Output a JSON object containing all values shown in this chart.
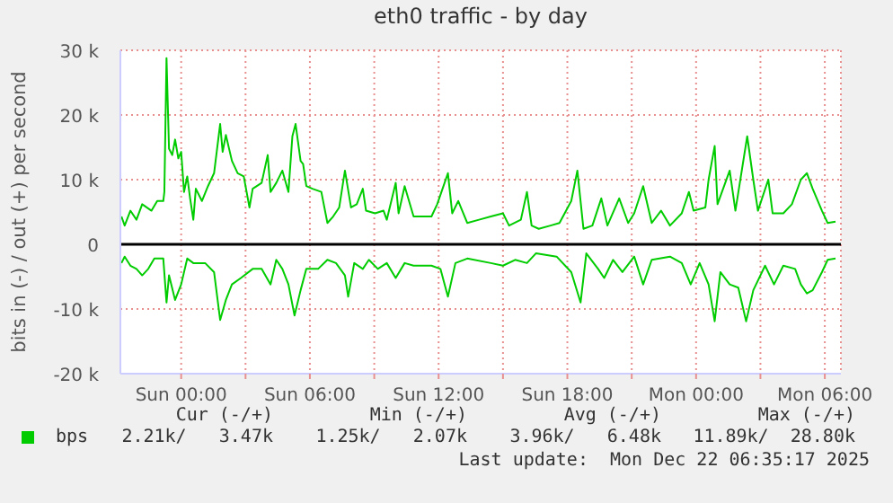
{
  "chart_data": {
    "type": "line",
    "title": "eth0 traffic - by day",
    "ylabel": "bits in (-) / out (+) per second",
    "xlim": [
      "2025-12-20T21:10",
      "2025-12-22T06:45"
    ],
    "xticks": [
      {
        "value": "2025-12-21T00:00",
        "label": "Sun 00:00"
      },
      {
        "value": "2025-12-21T03:00",
        "label": null
      },
      {
        "value": "2025-12-21T06:00",
        "label": "Sun 06:00"
      },
      {
        "value": "2025-12-21T09:00",
        "label": null
      },
      {
        "value": "2025-12-21T12:00",
        "label": "Sun 12:00"
      },
      {
        "value": "2025-12-21T15:00",
        "label": null
      },
      {
        "value": "2025-12-21T18:00",
        "label": "Sun 18:00"
      },
      {
        "value": "2025-12-21T21:00",
        "label": null
      },
      {
        "value": "2025-12-22T00:00",
        "label": "Mon 00:00"
      },
      {
        "value": "2025-12-22T03:00",
        "label": null
      },
      {
        "value": "2025-12-22T06:00",
        "label": "Mon 06:00"
      }
    ],
    "ylim": [
      -20000,
      30000
    ],
    "yticks": [
      {
        "value": -20000,
        "label": "-20 k"
      },
      {
        "value": -10000,
        "label": "-10 k"
      },
      0,
      {
        "value": 10000,
        "label": "10 k"
      },
      {
        "value": 20000,
        "label": "20 k"
      },
      {
        "value": 30000,
        "label": "30 k"
      }
    ],
    "grid": true,
    "legend": "bottom left",
    "line_style": "solid",
    "marker": "none",
    "ref_lines": [
      {
        "axis": "y",
        "value": 0,
        "color": "#000000"
      }
    ],
    "series": [
      {
        "name": "bps",
        "color": "#00cc00",
        "x": [
          "2025-12-20T21:13",
          "2025-12-20T21:22",
          "2025-12-20T21:38",
          "2025-12-20T21:55",
          "2025-12-20T22:11",
          "2025-12-20T22:37",
          "2025-12-20T22:53",
          "2025-12-20T23:10",
          "2025-12-20T23:13",
          "2025-12-20T23:19",
          "2025-12-20T23:26",
          "2025-12-20T23:35",
          "2025-12-20T23:43",
          "2025-12-20T23:52",
          "2025-12-21T00:00",
          "2025-12-21T00:08",
          "2025-12-21T00:17",
          "2025-12-21T00:25",
          "2025-12-21T00:34",
          "2025-12-21T00:41",
          "2025-12-21T00:58",
          "2025-12-21T01:15",
          "2025-12-21T01:32",
          "2025-12-21T01:49",
          "2025-12-21T01:56",
          "2025-12-21T02:05",
          "2025-12-21T02:22",
          "2025-12-21T02:38",
          "2025-12-21T02:55",
          "2025-12-21T03:11",
          "2025-12-21T03:20",
          "2025-12-21T03:45",
          "2025-12-21T04:02",
          "2025-12-21T04:10",
          "2025-12-21T04:26",
          "2025-12-21T04:43",
          "2025-12-21T05:00",
          "2025-12-21T05:11",
          "2025-12-21T05:20",
          "2025-12-21T05:34",
          "2025-12-21T05:41",
          "2025-12-21T05:50",
          "2025-12-21T06:07",
          "2025-12-21T06:32",
          "2025-12-21T06:49",
          "2025-12-21T07:05",
          "2025-12-21T07:22",
          "2025-12-21T07:38",
          "2025-12-21T07:55",
          "2025-12-21T08:11",
          "2025-12-21T08:28",
          "2025-12-21T08:37",
          "2025-12-21T09:02",
          "2025-12-21T09:26",
          "2025-12-21T09:35",
          "2025-12-21T10:00",
          "2025-12-21T10:08",
          "2025-12-21T10:25",
          "2025-12-21T10:50",
          "2025-12-21T11:40",
          "2025-12-21T11:56",
          "2025-12-21T12:26",
          "2025-12-21T12:38",
          "2025-12-21T12:55",
          "2025-12-21T13:20",
          "2025-12-21T13:53",
          "2025-12-21T14:26",
          "2025-12-21T15:00",
          "2025-12-21T15:17",
          "2025-12-21T15:50",
          "2025-12-21T16:07",
          "2025-12-21T16:20",
          "2025-12-21T16:40",
          "2025-12-21T17:13",
          "2025-12-21T17:38",
          "2025-12-21T18:11",
          "2025-12-21T18:28",
          "2025-12-21T18:45",
          "2025-12-21T19:10",
          "2025-12-21T19:35",
          "2025-12-21T19:52",
          "2025-12-21T20:25",
          "2025-12-21T20:50",
          "2025-12-21T21:07",
          "2025-12-21T21:32",
          "2025-12-21T21:56",
          "2025-12-21T22:22",
          "2025-12-21T22:47",
          "2025-12-21T23:20",
          "2025-12-21T23:40",
          "2025-12-21T23:53",
          "2025-12-22T00:26",
          "2025-12-22T00:35",
          "2025-12-22T00:52",
          "2025-12-22T01:00",
          "2025-12-22T01:34",
          "2025-12-22T01:50",
          "2025-12-22T02:23",
          "2025-12-22T02:40",
          "2025-12-22T02:53",
          "2025-12-22T03:22",
          "2025-12-22T03:34",
          "2025-12-22T04:04",
          "2025-12-22T04:28",
          "2025-12-22T04:53",
          "2025-12-22T05:10",
          "2025-12-22T05:26",
          "2025-12-22T05:52",
          "2025-12-22T06:08",
          "2025-12-22T06:30"
        ],
        "values": [
          4300,
          2900,
          5200,
          3800,
          6200,
          5200,
          6700,
          6700,
          8100,
          28800,
          14800,
          13800,
          16200,
          13300,
          14300,
          8100,
          10500,
          7100,
          3800,
          8600,
          6700,
          9000,
          11000,
          18600,
          14300,
          16900,
          12900,
          11000,
          10500,
          5700,
          8600,
          9500,
          13800,
          8100,
          9500,
          11400,
          8100,
          16700,
          18600,
          12900,
          12400,
          9000,
          8600,
          8100,
          3300,
          4300,
          5700,
          11400,
          5700,
          6200,
          8600,
          5200,
          4800,
          5200,
          3800,
          9500,
          4800,
          9000,
          4300,
          4300,
          6200,
          11000,
          4800,
          6700,
          3300,
          3800,
          4300,
          4800,
          2900,
          3800,
          8100,
          2900,
          2400,
          2900,
          3300,
          6700,
          11400,
          2400,
          2900,
          7100,
          2900,
          7100,
          3300,
          4800,
          9000,
          3300,
          5200,
          2900,
          4800,
          8100,
          5200,
          5700,
          10000,
          15200,
          6200,
          11400,
          5200,
          16700,
          10000,
          5200,
          10000,
          4800,
          4800,
          6200,
          10000,
          11000,
          8600,
          5200,
          3300,
          3500
        ]
      },
      {
        "color": "#00cc00",
        "x": [
          "2025-12-20T21:13",
          "2025-12-20T21:22",
          "2025-12-20T21:38",
          "2025-12-20T21:55",
          "2025-12-20T22:11",
          "2025-12-20T22:28",
          "2025-12-20T22:45",
          "2025-12-20T23:10",
          "2025-12-20T23:19",
          "2025-12-20T23:26",
          "2025-12-20T23:43",
          "2025-12-21T00:00",
          "2025-12-21T00:17",
          "2025-12-21T00:34",
          "2025-12-21T01:07",
          "2025-12-21T01:32",
          "2025-12-21T01:49",
          "2025-12-21T02:05",
          "2025-12-21T02:22",
          "2025-12-21T02:47",
          "2025-12-21T03:20",
          "2025-12-21T03:45",
          "2025-12-21T04:10",
          "2025-12-21T04:26",
          "2025-12-21T04:43",
          "2025-12-21T05:00",
          "2025-12-21T05:17",
          "2025-12-21T05:34",
          "2025-12-21T05:50",
          "2025-12-21T06:23",
          "2025-12-21T06:49",
          "2025-12-21T07:13",
          "2025-12-21T07:38",
          "2025-12-21T07:47",
          "2025-12-21T08:04",
          "2025-12-21T08:28",
          "2025-12-21T08:45",
          "2025-12-21T09:10",
          "2025-12-21T09:35",
          "2025-12-21T10:00",
          "2025-12-21T10:25",
          "2025-12-21T10:50",
          "2025-12-21T11:40",
          "2025-12-21T12:05",
          "2025-12-21T12:26",
          "2025-12-21T12:47",
          "2025-12-21T13:20",
          "2025-12-21T14:26",
          "2025-12-21T15:00",
          "2025-12-21T15:34",
          "2025-12-21T16:07",
          "2025-12-21T16:32",
          "2025-12-21T17:30",
          "2025-12-21T18:11",
          "2025-12-21T18:37",
          "2025-12-21T18:53",
          "2025-12-21T19:26",
          "2025-12-21T19:43",
          "2025-12-21T20:08",
          "2025-12-21T20:34",
          "2025-12-21T21:07",
          "2025-12-21T21:32",
          "2025-12-21T21:56",
          "2025-12-21T22:47",
          "2025-12-21T23:20",
          "2025-12-21T23:45",
          "2025-12-22T00:10",
          "2025-12-22T00:35",
          "2025-12-22T00:52",
          "2025-12-22T01:08",
          "2025-12-22T01:34",
          "2025-12-22T01:58",
          "2025-12-22T02:20",
          "2025-12-22T02:40",
          "2025-12-22T03:13",
          "2025-12-22T03:38",
          "2025-12-22T04:04",
          "2025-12-22T04:37",
          "2025-12-22T04:53",
          "2025-12-22T05:10",
          "2025-12-22T05:26",
          "2025-12-22T05:52",
          "2025-12-22T06:08",
          "2025-12-22T06:30"
        ],
        "values": [
          -2900,
          -1900,
          -3300,
          -3800,
          -4800,
          -3800,
          -2200,
          -2200,
          -9000,
          -4800,
          -8600,
          -6200,
          -2200,
          -2900,
          -2900,
          -4300,
          -11700,
          -8600,
          -6200,
          -5200,
          -3800,
          -3800,
          -6200,
          -2400,
          -3800,
          -6200,
          -11000,
          -7100,
          -3800,
          -3800,
          -2400,
          -2900,
          -4800,
          -8100,
          -2900,
          -3800,
          -2400,
          -3800,
          -2900,
          -5200,
          -2900,
          -3300,
          -3300,
          -3800,
          -8100,
          -2900,
          -2200,
          -2900,
          -3300,
          -2400,
          -2900,
          -1400,
          -1900,
          -4300,
          -9000,
          -1400,
          -3800,
          -5200,
          -2400,
          -4300,
          -1900,
          -6200,
          -2400,
          -1900,
          -2900,
          -6200,
          -2900,
          -6200,
          -11900,
          -4300,
          -6200,
          -6700,
          -11900,
          -7100,
          -3300,
          -6200,
          -3300,
          -3800,
          -6200,
          -7600,
          -7100,
          -4300,
          -2400,
          -2200
        ]
      }
    ],
    "annotations": [
      "Cur (-/+)",
      "Min (-/+)",
      "Avg (-/+)",
      "Max (-/+)",
      "2.21k/   3.47k",
      "1.25k/   2.07k",
      "3.96k/   6.48k",
      "11.89k/  28.80k",
      "Last update:  Mon Dec 22 06:35:17 2025"
    ]
  }
}
